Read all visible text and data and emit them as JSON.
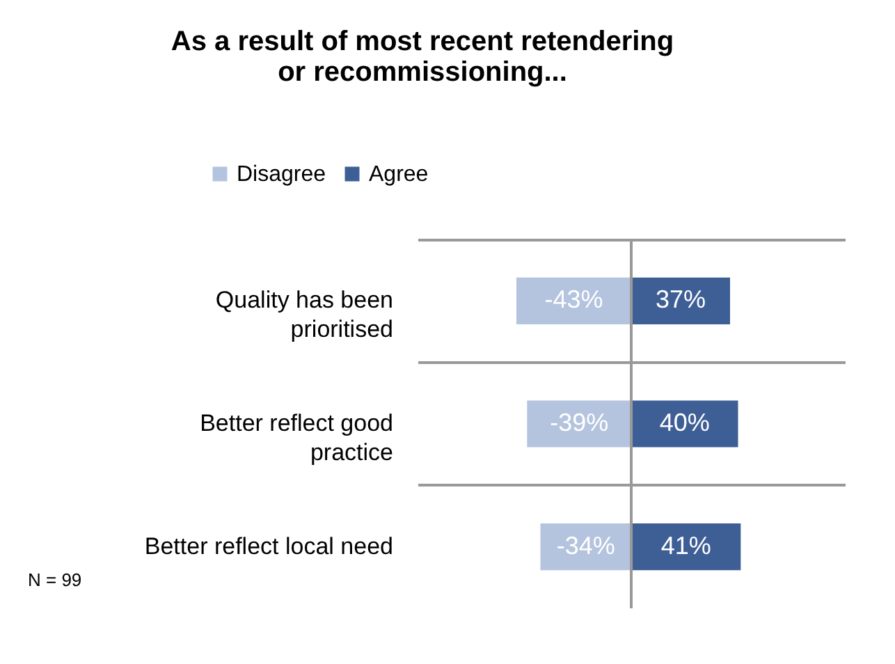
{
  "chart_data": {
    "type": "bar",
    "orientation": "horizontal",
    "stacked": true,
    "title": "As a result of most recent retendering or recommissioning...",
    "categories": [
      "Quality has been prioritised",
      "Better reflect good practice",
      "Better reflect local need"
    ],
    "series": [
      {
        "name": "Disagree",
        "color": "#b4c3de",
        "values": [
          -43,
          -39,
          -34
        ],
        "value_labels": [
          "-43%",
          "-39%",
          "-34%"
        ]
      },
      {
        "name": "Agree",
        "color": "#3e5f96",
        "values": [
          37,
          40,
          41
        ],
        "value_labels": [
          "37%",
          "40%",
          "41%"
        ]
      }
    ],
    "xlim": [
      -80,
      80
    ],
    "tick_labels": "y",
    "grid": "y",
    "legend": "top",
    "annotations": [
      "N = 99"
    ]
  }
}
